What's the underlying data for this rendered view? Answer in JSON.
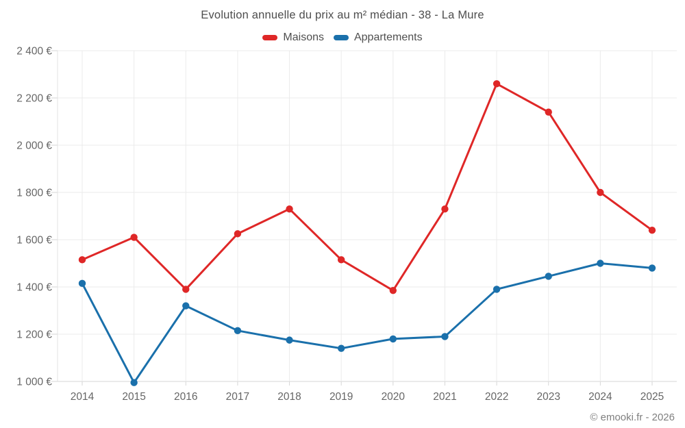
{
  "chart": {
    "title": "Evolution annuelle du prix au m² médian - 38 - La Mure",
    "footer": "© emooki.fr - 2026"
  },
  "chart_data": {
    "type": "line",
    "title": "Evolution annuelle du prix au m² médian - 38 - La Mure",
    "categories": [
      "2014",
      "2015",
      "2016",
      "2017",
      "2018",
      "2019",
      "2020",
      "2021",
      "2022",
      "2023",
      "2024",
      "2025"
    ],
    "series": [
      {
        "name": "Maisons",
        "color": "#df2727",
        "marker": "circle",
        "values": [
          1515,
          1610,
          1390,
          1625,
          1730,
          1515,
          1385,
          1730,
          2260,
          2140,
          1800,
          1640
        ]
      },
      {
        "name": "Appartements",
        "color": "#1a70ab",
        "marker": "circle",
        "values": [
          1415,
          995,
          1320,
          1215,
          1175,
          1140,
          1180,
          1190,
          1390,
          1445,
          1500,
          1480
        ]
      }
    ],
    "xlabel": "",
    "ylabel": "",
    "ylim": [
      1000,
      2400
    ],
    "y_ticks": [
      {
        "value": 1000,
        "label": "1 000 €"
      },
      {
        "value": 1200,
        "label": "1 200 €"
      },
      {
        "value": 1400,
        "label": "1 400 €"
      },
      {
        "value": 1600,
        "label": "1 600 €"
      },
      {
        "value": 1800,
        "label": "1 800 €"
      },
      {
        "value": 2000,
        "label": "2 000 €"
      },
      {
        "value": 2200,
        "label": "2 200 €"
      },
      {
        "value": 2400,
        "label": "2 400 €"
      }
    ],
    "grid": true,
    "legend_position": "top",
    "footer": "© emooki.fr - 2026"
  },
  "colors": {
    "maisons": "#df2727",
    "appartements": "#1a70ab",
    "gridline": "#ebebeb",
    "axis_line": "#d6d6d6",
    "tick_label": "#666666",
    "title_text": "#4d4d4d",
    "legend_text": "#4f4f4f",
    "footer_text": "#7f7f7f"
  }
}
